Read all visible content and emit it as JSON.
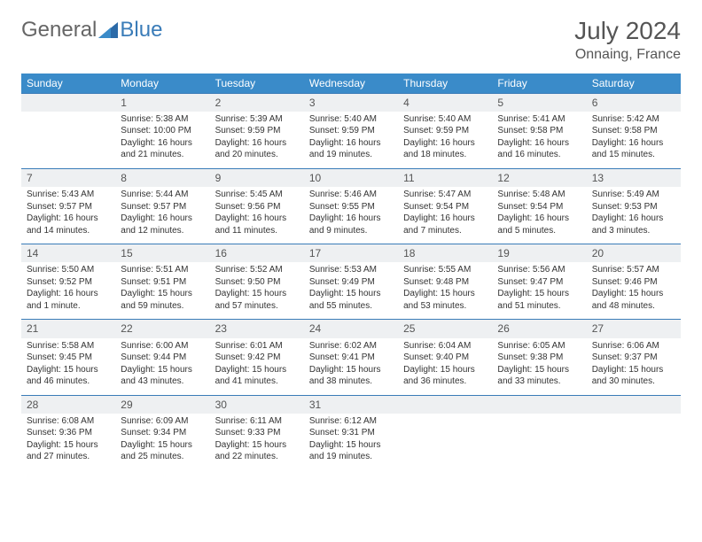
{
  "logo": {
    "text1": "General",
    "text2": "Blue"
  },
  "title": {
    "month": "July 2024",
    "location": "Onnaing, France"
  },
  "colors": {
    "header_bg": "#3a8bc9",
    "header_text": "#ffffff",
    "daynum_bg": "#eef0f2",
    "border": "#3a7cb8",
    "text": "#333333",
    "logo_gray": "#666666",
    "logo_blue": "#3a7cb8"
  },
  "weekdays": [
    "Sunday",
    "Monday",
    "Tuesday",
    "Wednesday",
    "Thursday",
    "Friday",
    "Saturday"
  ],
  "weeks": [
    [
      null,
      {
        "n": "1",
        "sr": "Sunrise: 5:38 AM",
        "ss": "Sunset: 10:00 PM",
        "dl": "Daylight: 16 hours and 21 minutes."
      },
      {
        "n": "2",
        "sr": "Sunrise: 5:39 AM",
        "ss": "Sunset: 9:59 PM",
        "dl": "Daylight: 16 hours and 20 minutes."
      },
      {
        "n": "3",
        "sr": "Sunrise: 5:40 AM",
        "ss": "Sunset: 9:59 PM",
        "dl": "Daylight: 16 hours and 19 minutes."
      },
      {
        "n": "4",
        "sr": "Sunrise: 5:40 AM",
        "ss": "Sunset: 9:59 PM",
        "dl": "Daylight: 16 hours and 18 minutes."
      },
      {
        "n": "5",
        "sr": "Sunrise: 5:41 AM",
        "ss": "Sunset: 9:58 PM",
        "dl": "Daylight: 16 hours and 16 minutes."
      },
      {
        "n": "6",
        "sr": "Sunrise: 5:42 AM",
        "ss": "Sunset: 9:58 PM",
        "dl": "Daylight: 16 hours and 15 minutes."
      }
    ],
    [
      {
        "n": "7",
        "sr": "Sunrise: 5:43 AM",
        "ss": "Sunset: 9:57 PM",
        "dl": "Daylight: 16 hours and 14 minutes."
      },
      {
        "n": "8",
        "sr": "Sunrise: 5:44 AM",
        "ss": "Sunset: 9:57 PM",
        "dl": "Daylight: 16 hours and 12 minutes."
      },
      {
        "n": "9",
        "sr": "Sunrise: 5:45 AM",
        "ss": "Sunset: 9:56 PM",
        "dl": "Daylight: 16 hours and 11 minutes."
      },
      {
        "n": "10",
        "sr": "Sunrise: 5:46 AM",
        "ss": "Sunset: 9:55 PM",
        "dl": "Daylight: 16 hours and 9 minutes."
      },
      {
        "n": "11",
        "sr": "Sunrise: 5:47 AM",
        "ss": "Sunset: 9:54 PM",
        "dl": "Daylight: 16 hours and 7 minutes."
      },
      {
        "n": "12",
        "sr": "Sunrise: 5:48 AM",
        "ss": "Sunset: 9:54 PM",
        "dl": "Daylight: 16 hours and 5 minutes."
      },
      {
        "n": "13",
        "sr": "Sunrise: 5:49 AM",
        "ss": "Sunset: 9:53 PM",
        "dl": "Daylight: 16 hours and 3 minutes."
      }
    ],
    [
      {
        "n": "14",
        "sr": "Sunrise: 5:50 AM",
        "ss": "Sunset: 9:52 PM",
        "dl": "Daylight: 16 hours and 1 minute."
      },
      {
        "n": "15",
        "sr": "Sunrise: 5:51 AM",
        "ss": "Sunset: 9:51 PM",
        "dl": "Daylight: 15 hours and 59 minutes."
      },
      {
        "n": "16",
        "sr": "Sunrise: 5:52 AM",
        "ss": "Sunset: 9:50 PM",
        "dl": "Daylight: 15 hours and 57 minutes."
      },
      {
        "n": "17",
        "sr": "Sunrise: 5:53 AM",
        "ss": "Sunset: 9:49 PM",
        "dl": "Daylight: 15 hours and 55 minutes."
      },
      {
        "n": "18",
        "sr": "Sunrise: 5:55 AM",
        "ss": "Sunset: 9:48 PM",
        "dl": "Daylight: 15 hours and 53 minutes."
      },
      {
        "n": "19",
        "sr": "Sunrise: 5:56 AM",
        "ss": "Sunset: 9:47 PM",
        "dl": "Daylight: 15 hours and 51 minutes."
      },
      {
        "n": "20",
        "sr": "Sunrise: 5:57 AM",
        "ss": "Sunset: 9:46 PM",
        "dl": "Daylight: 15 hours and 48 minutes."
      }
    ],
    [
      {
        "n": "21",
        "sr": "Sunrise: 5:58 AM",
        "ss": "Sunset: 9:45 PM",
        "dl": "Daylight: 15 hours and 46 minutes."
      },
      {
        "n": "22",
        "sr": "Sunrise: 6:00 AM",
        "ss": "Sunset: 9:44 PM",
        "dl": "Daylight: 15 hours and 43 minutes."
      },
      {
        "n": "23",
        "sr": "Sunrise: 6:01 AM",
        "ss": "Sunset: 9:42 PM",
        "dl": "Daylight: 15 hours and 41 minutes."
      },
      {
        "n": "24",
        "sr": "Sunrise: 6:02 AM",
        "ss": "Sunset: 9:41 PM",
        "dl": "Daylight: 15 hours and 38 minutes."
      },
      {
        "n": "25",
        "sr": "Sunrise: 6:04 AM",
        "ss": "Sunset: 9:40 PM",
        "dl": "Daylight: 15 hours and 36 minutes."
      },
      {
        "n": "26",
        "sr": "Sunrise: 6:05 AM",
        "ss": "Sunset: 9:38 PM",
        "dl": "Daylight: 15 hours and 33 minutes."
      },
      {
        "n": "27",
        "sr": "Sunrise: 6:06 AM",
        "ss": "Sunset: 9:37 PM",
        "dl": "Daylight: 15 hours and 30 minutes."
      }
    ],
    [
      {
        "n": "28",
        "sr": "Sunrise: 6:08 AM",
        "ss": "Sunset: 9:36 PM",
        "dl": "Daylight: 15 hours and 27 minutes."
      },
      {
        "n": "29",
        "sr": "Sunrise: 6:09 AM",
        "ss": "Sunset: 9:34 PM",
        "dl": "Daylight: 15 hours and 25 minutes."
      },
      {
        "n": "30",
        "sr": "Sunrise: 6:11 AM",
        "ss": "Sunset: 9:33 PM",
        "dl": "Daylight: 15 hours and 22 minutes."
      },
      {
        "n": "31",
        "sr": "Sunrise: 6:12 AM",
        "ss": "Sunset: 9:31 PM",
        "dl": "Daylight: 15 hours and 19 minutes."
      },
      null,
      null,
      null
    ]
  ]
}
